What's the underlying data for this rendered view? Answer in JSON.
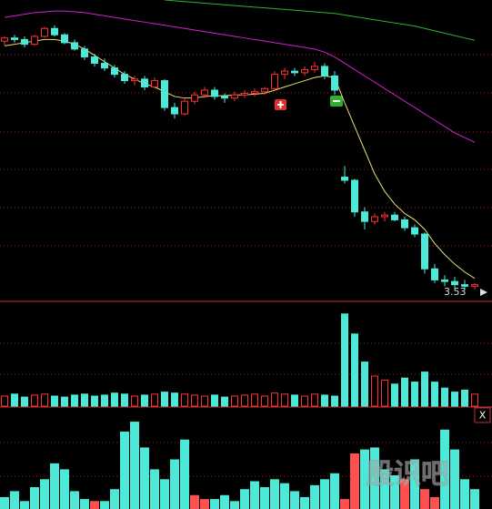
{
  "chart_data": {
    "type": "candlestick",
    "ylim": [
      3.4,
      7.2
    ],
    "up_color": "#ff3030",
    "down_color": "#4de8d8",
    "candles": [
      [
        6.68,
        6.74,
        6.62,
        6.72
      ],
      [
        6.72,
        6.76,
        6.66,
        6.7
      ],
      [
        6.7,
        6.74,
        6.6,
        6.64
      ],
      [
        6.64,
        6.76,
        6.62,
        6.74
      ],
      [
        6.74,
        6.86,
        6.72,
        6.84
      ],
      [
        6.84,
        6.88,
        6.74,
        6.76
      ],
      [
        6.76,
        6.78,
        6.64,
        6.66
      ],
      [
        6.66,
        6.7,
        6.56,
        6.58
      ],
      [
        6.58,
        6.62,
        6.44,
        6.48
      ],
      [
        6.48,
        6.52,
        6.36,
        6.4
      ],
      [
        6.4,
        6.46,
        6.3,
        6.34
      ],
      [
        6.34,
        6.38,
        6.22,
        6.26
      ],
      [
        6.26,
        6.3,
        6.14,
        6.18
      ],
      [
        6.18,
        6.24,
        6.12,
        6.2
      ],
      [
        6.2,
        6.24,
        6.06,
        6.1
      ],
      [
        6.1,
        6.22,
        6.08,
        6.18
      ],
      [
        6.18,
        6.2,
        5.8,
        5.84
      ],
      [
        5.84,
        5.9,
        5.7,
        5.76
      ],
      [
        5.76,
        5.96,
        5.74,
        5.92
      ],
      [
        5.92,
        6.04,
        5.88,
        6.0
      ],
      [
        6.0,
        6.1,
        5.96,
        6.06
      ],
      [
        6.06,
        6.1,
        5.94,
        5.98
      ],
      [
        5.98,
        6.02,
        5.9,
        5.96
      ],
      [
        5.96,
        6.04,
        5.92,
        6.0
      ],
      [
        6.0,
        6.06,
        5.96,
        6.02
      ],
      [
        6.02,
        6.08,
        5.98,
        6.04
      ],
      [
        6.04,
        6.1,
        6.0,
        6.08
      ],
      [
        6.08,
        6.3,
        6.06,
        6.26
      ],
      [
        6.26,
        6.34,
        6.2,
        6.3
      ],
      [
        6.3,
        6.34,
        6.24,
        6.28
      ],
      [
        6.28,
        6.36,
        6.24,
        6.32
      ],
      [
        6.32,
        6.42,
        6.28,
        6.36
      ],
      [
        6.36,
        6.4,
        6.2,
        6.24
      ],
      [
        6.24,
        6.3,
        6.0,
        6.06
      ],
      [
        4.96,
        5.1,
        4.88,
        4.92
      ],
      [
        4.92,
        4.94,
        4.46,
        4.52
      ],
      [
        4.52,
        4.58,
        4.3,
        4.4
      ],
      [
        4.4,
        4.5,
        4.36,
        4.46
      ],
      [
        4.46,
        4.52,
        4.4,
        4.48
      ],
      [
        4.48,
        4.52,
        4.4,
        4.42
      ],
      [
        4.42,
        4.46,
        4.28,
        4.32
      ],
      [
        4.32,
        4.36,
        4.2,
        4.24
      ],
      [
        4.24,
        4.26,
        3.74,
        3.8
      ],
      [
        3.8,
        3.86,
        3.62,
        3.66
      ],
      [
        3.66,
        3.72,
        3.58,
        3.64
      ],
      [
        3.64,
        3.7,
        3.56,
        3.6
      ],
      [
        3.6,
        3.66,
        3.53,
        3.58
      ],
      [
        3.58,
        3.62,
        3.54,
        3.6
      ]
    ],
    "ma": [
      {
        "color": "#e8e070",
        "values": [
          6.62,
          6.64,
          6.66,
          6.68,
          6.7,
          6.7,
          6.68,
          6.64,
          6.58,
          6.5,
          6.42,
          6.34,
          6.26,
          6.2,
          6.14,
          6.1,
          6.04,
          5.98,
          5.96,
          5.96,
          5.98,
          5.99,
          5.99,
          6.0,
          6.0,
          6.01,
          6.02,
          6.06,
          6.1,
          6.14,
          6.18,
          6.22,
          6.24,
          6.22,
          5.9,
          5.6,
          5.3,
          5.0,
          4.78,
          4.62,
          4.5,
          4.42,
          4.3,
          4.12,
          3.98,
          3.86,
          3.76,
          3.68
        ]
      },
      {
        "color": "#d020d0",
        "values": [
          6.98,
          7.0,
          7.02,
          7.04,
          7.05,
          7.06,
          7.06,
          7.05,
          7.04,
          7.02,
          7.0,
          6.98,
          6.96,
          6.94,
          6.92,
          6.9,
          6.88,
          6.86,
          6.84,
          6.82,
          6.8,
          6.78,
          6.76,
          6.74,
          6.72,
          6.7,
          6.68,
          6.66,
          6.64,
          6.62,
          6.6,
          6.58,
          6.54,
          6.48,
          6.4,
          6.32,
          6.24,
          6.16,
          6.08,
          6.0,
          5.92,
          5.84,
          5.76,
          5.68,
          5.6,
          5.52,
          5.46,
          5.4
        ]
      },
      {
        "color": "#30b030",
        "values": [
          null,
          null,
          null,
          null,
          null,
          null,
          null,
          null,
          null,
          null,
          null,
          null,
          null,
          null,
          null,
          null,
          7.2,
          7.19,
          7.18,
          7.17,
          7.16,
          7.15,
          7.14,
          7.13,
          7.12,
          7.11,
          7.1,
          7.09,
          7.08,
          7.07,
          7.06,
          7.05,
          7.04,
          7.03,
          7.01,
          6.99,
          6.97,
          6.95,
          6.93,
          6.91,
          6.89,
          6.87,
          6.84,
          6.81,
          6.78,
          6.75,
          6.72,
          6.69
        ]
      }
    ],
    "volume": {
      "ylim": [
        0,
        100
      ],
      "values": [
        10,
        12,
        9,
        11,
        12,
        10,
        9,
        11,
        12,
        10,
        11,
        13,
        12,
        10,
        11,
        12,
        14,
        13,
        12,
        11,
        10,
        11,
        9,
        10,
        11,
        12,
        10,
        13,
        12,
        11,
        10,
        12,
        11,
        10,
        92,
        72,
        44,
        30,
        26,
        22,
        28,
        24,
        34,
        24,
        18,
        14,
        16,
        12
      ]
    },
    "indicator": {
      "ylim": [
        0,
        100
      ],
      "series": [
        {
          "color": "#4de8d8",
          "values": [
            12,
            18,
            8,
            22,
            30,
            46,
            40,
            18,
            10,
            null,
            8,
            20,
            78,
            88,
            62,
            40,
            30,
            50,
            70,
            null,
            null,
            10,
            14,
            8,
            20,
            28,
            22,
            30,
            26,
            18,
            12,
            24,
            30,
            36,
            null,
            null,
            60,
            62,
            40,
            34,
            null,
            50,
            null,
            null,
            80,
            60,
            30,
            20
          ]
        },
        {
          "color": "#ff5050",
          "values": [
            null,
            null,
            null,
            null,
            null,
            null,
            null,
            null,
            null,
            8,
            null,
            null,
            null,
            null,
            null,
            null,
            null,
            null,
            null,
            14,
            10,
            null,
            null,
            null,
            null,
            null,
            null,
            null,
            null,
            null,
            null,
            null,
            null,
            null,
            10,
            56,
            null,
            null,
            null,
            null,
            30,
            null,
            20,
            12,
            null,
            null,
            null,
            null
          ]
        }
      ]
    },
    "last_price_label": "3.53",
    "close_button": "X",
    "watermark": "股识吧"
  }
}
